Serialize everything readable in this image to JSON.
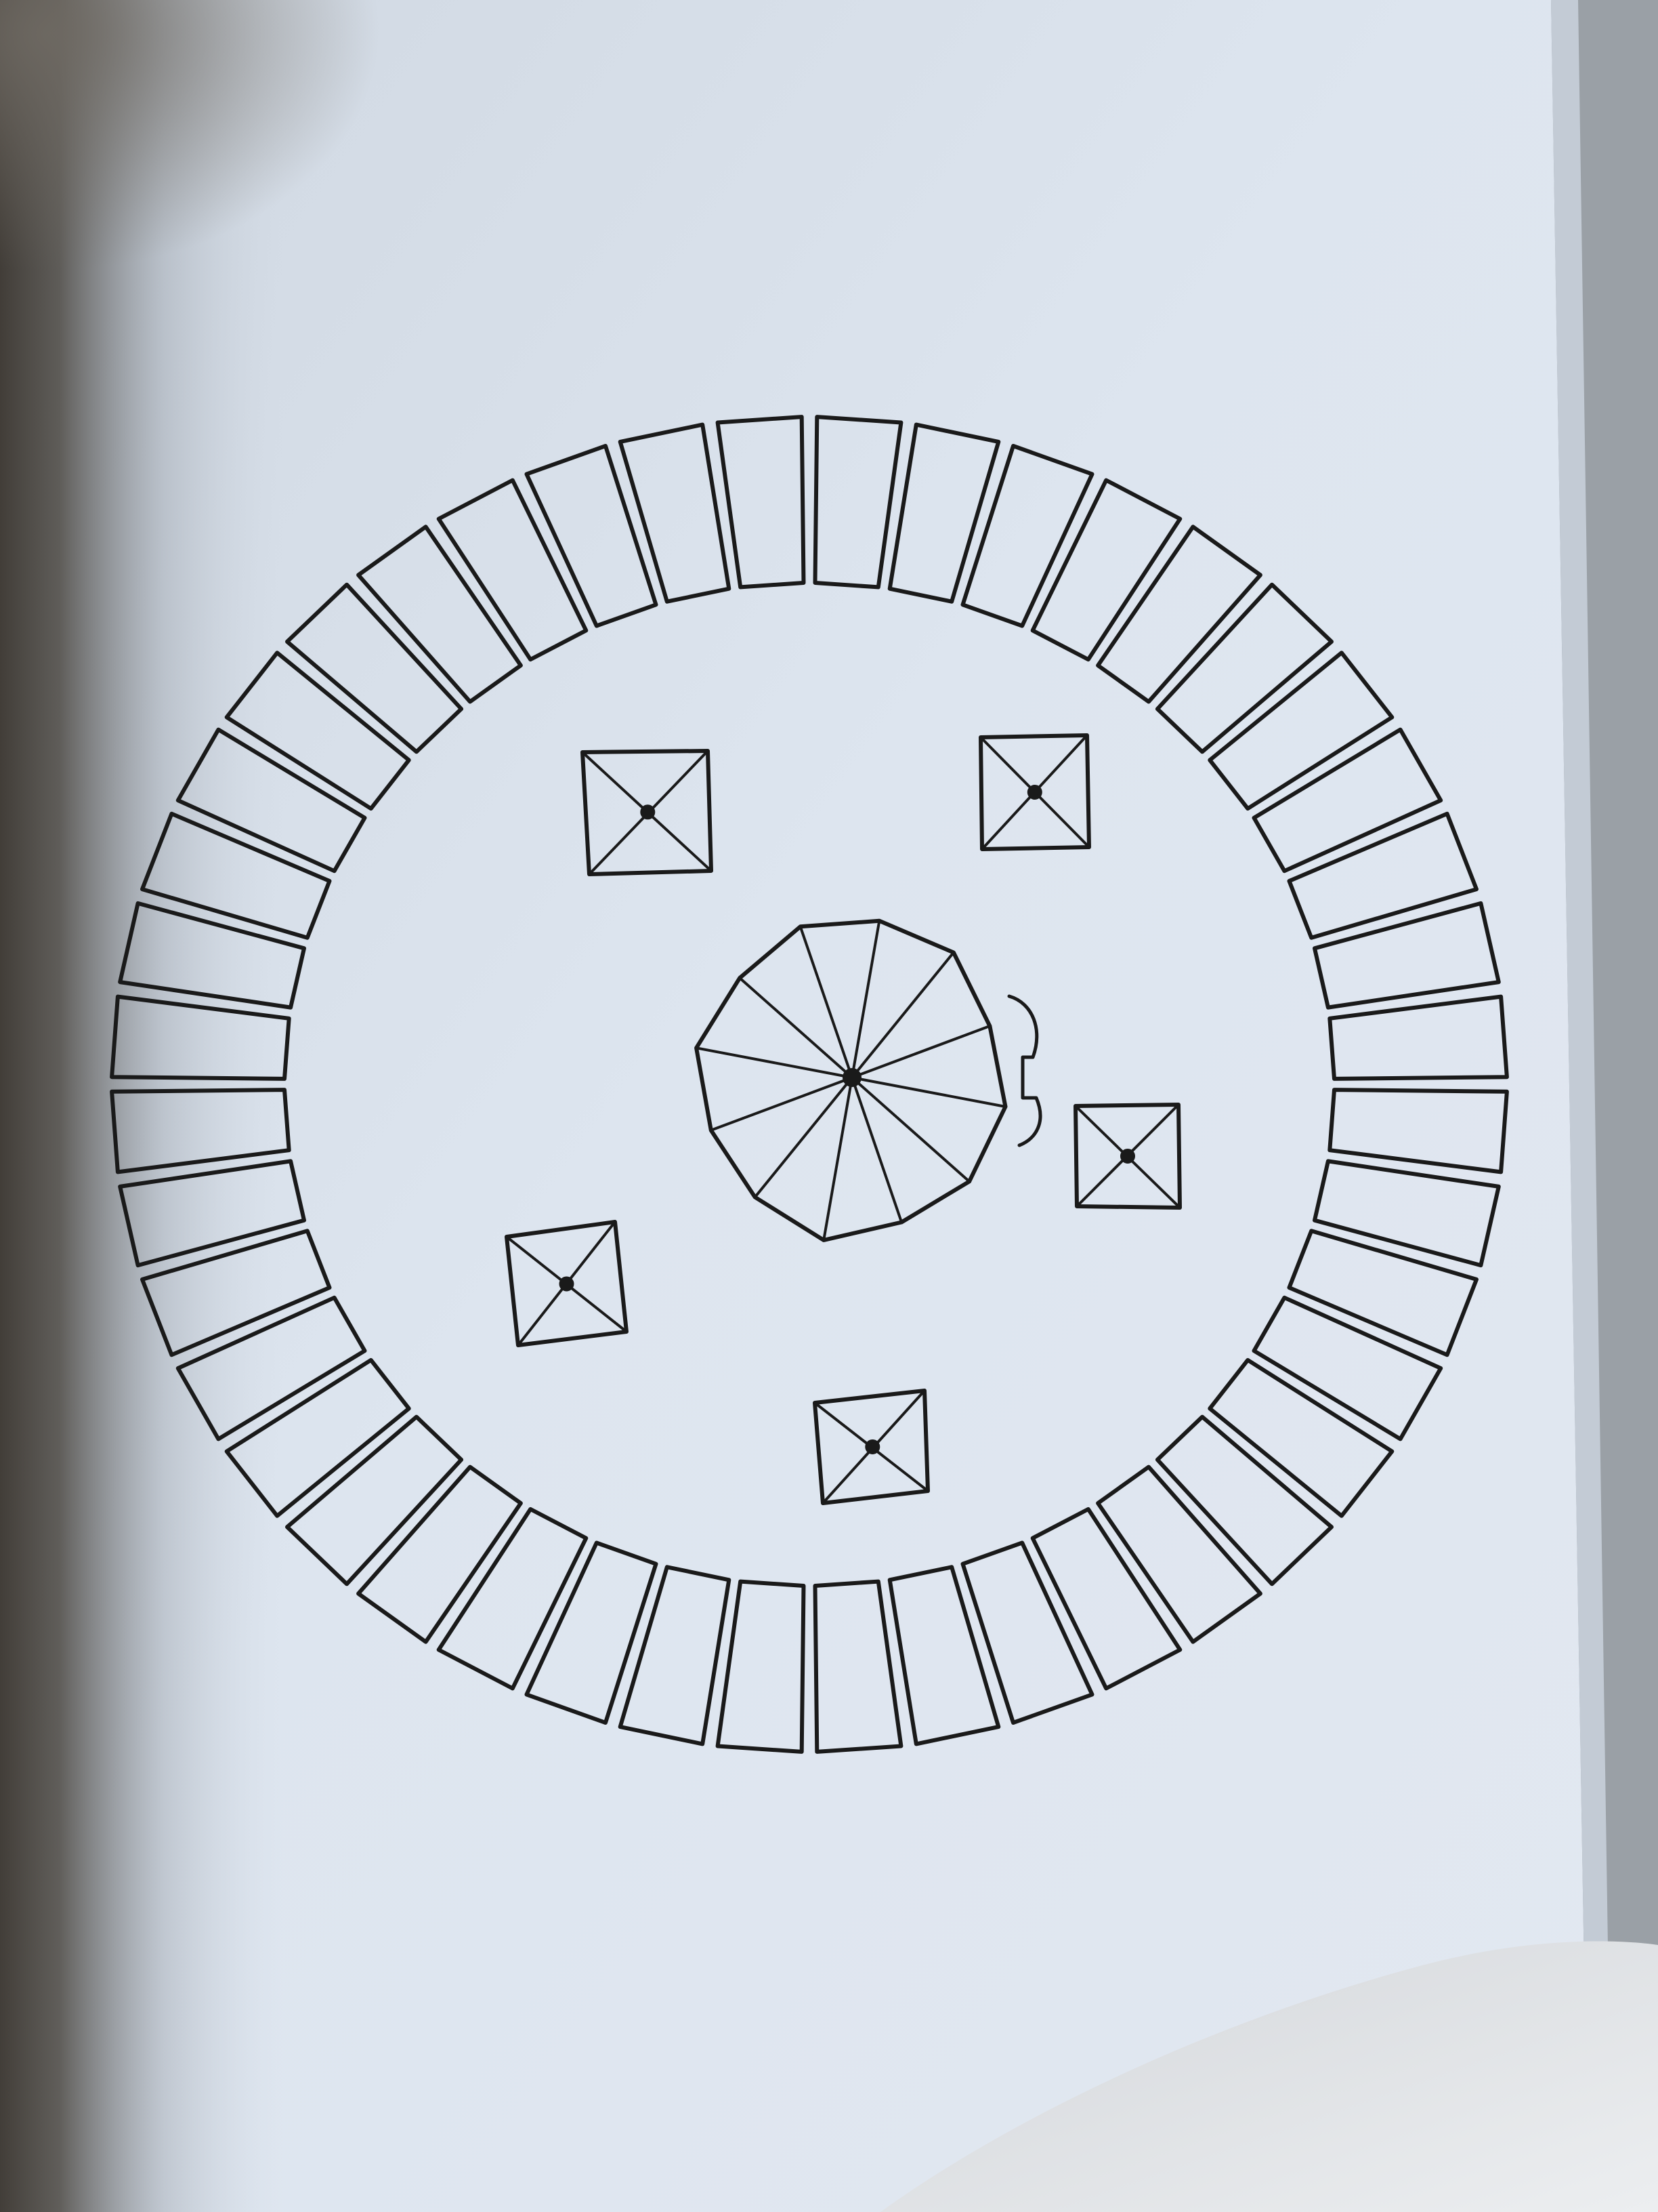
{
  "diagram": {
    "outer_ring": {
      "segment_count": 44,
      "stroke_color": "#1a1a1a"
    },
    "center_umbrella": {
      "rib_count": 12
    },
    "square_tables": {
      "count": 5
    }
  },
  "colors": {
    "paper": "#dbe3ee",
    "paper_shadow": "#aeb7c1",
    "ink": "#1a1a1a",
    "backdrop": "#8d9298",
    "cloth": "#e6e8eb"
  }
}
